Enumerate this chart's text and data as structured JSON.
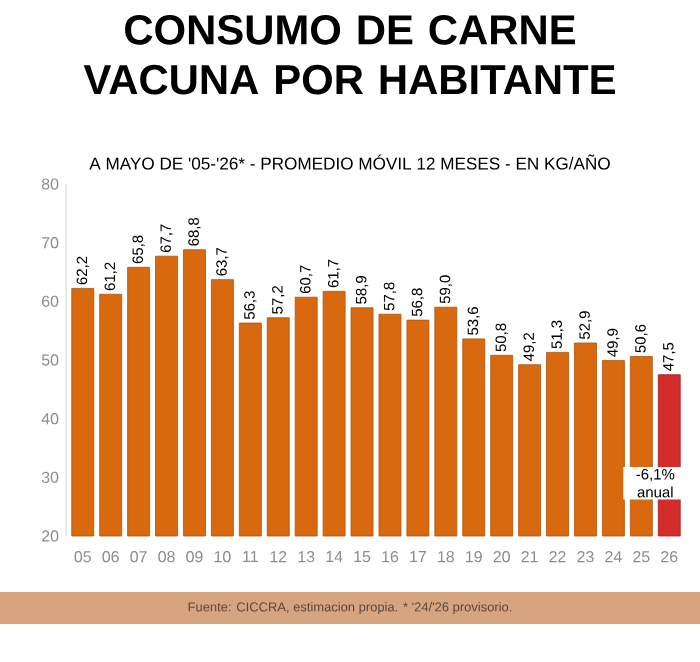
{
  "chart_data": {
    "type": "bar",
    "title": "CONSUMO DE CARNE VACUNA POR HABITANTE",
    "subtitle": "A MAYO DE '05-'26* - PROMEDIO MÓVIL 12 MESES - EN KG/AÑO",
    "categories": [
      "05",
      "06",
      "07",
      "08",
      "09",
      "10",
      "11",
      "12",
      "13",
      "14",
      "15",
      "16",
      "17",
      "18",
      "19",
      "20",
      "21",
      "22",
      "23",
      "24",
      "25",
      "26"
    ],
    "values": [
      62.2,
      61.2,
      65.8,
      67.7,
      68.8,
      63.7,
      56.3,
      57.2,
      60.7,
      61.7,
      58.9,
      57.8,
      56.8,
      59.0,
      53.6,
      50.8,
      49.2,
      51.3,
      52.9,
      49.9,
      50.6,
      47.5
    ],
    "value_labels": [
      "62,2",
      "61,2",
      "65,8",
      "67,7",
      "68,8",
      "63,7",
      "56,3",
      "57,2",
      "60,7",
      "61,7",
      "58,9",
      "57,8",
      "56,8",
      "59,0",
      "53,6",
      "50,8",
      "49,2",
      "51,3",
      "52,9",
      "49,9",
      "50,6",
      "47,5"
    ],
    "colors": [
      "#d9690f",
      "#d9690f",
      "#d9690f",
      "#d9690f",
      "#d9690f",
      "#d9690f",
      "#d9690f",
      "#d9690f",
      "#d9690f",
      "#d9690f",
      "#d9690f",
      "#d9690f",
      "#d9690f",
      "#d9690f",
      "#d9690f",
      "#d9690f",
      "#d9690f",
      "#d9690f",
      "#d9690f",
      "#d9690f",
      "#d9690f",
      "#d42b2b"
    ],
    "ylim": [
      20,
      80
    ],
    "yticks": [
      20,
      30,
      40,
      50,
      60,
      70,
      80
    ],
    "grid": false,
    "annotations": [
      "-6,1% anual",
      "Fuente: CICCRA, estimacion propia. * '24/'26 provisorio."
    ]
  }
}
